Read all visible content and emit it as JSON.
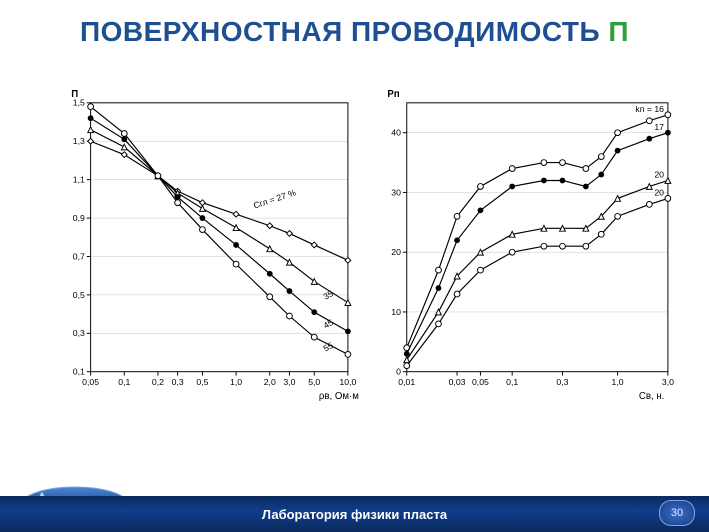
{
  "title": {
    "main": "ПОВЕРХНОСТНАЯ ПРОВОДИМОСТЬ ",
    "accent": "П"
  },
  "footer": {
    "label": "Лаборатория физики пласта",
    "page": "30"
  },
  "colors": {
    "title": "#1d4f91",
    "accent": "#2e9e3a",
    "footer_bg": "#103d8c",
    "axis": "#000000",
    "curve": "#000000",
    "bg": "#ffffff"
  },
  "chart_left": {
    "type": "line",
    "title": "",
    "ylabel": "П",
    "xlabel": "ρв, Ом·м",
    "x_ticks": [
      "0,05",
      "0,1",
      "0,2",
      "0,3",
      "0,5",
      "1,0",
      "2,0",
      "3,0",
      "5,0",
      "10,0"
    ],
    "y_ticks": [
      "0,1",
      "0,3",
      "0,5",
      "0,7",
      "0,9",
      "1,1",
      "1,3",
      "1,5"
    ],
    "series_param_label": "Cгл = 27 %",
    "series_labels": [
      "27",
      "35",
      "45",
      "55"
    ],
    "series": {
      "27": [
        {
          "x": 0.05,
          "y": 1.3
        },
        {
          "x": 0.1,
          "y": 1.23
        },
        {
          "x": 0.2,
          "y": 1.12
        },
        {
          "x": 0.3,
          "y": 1.04
        },
        {
          "x": 0.5,
          "y": 0.98
        },
        {
          "x": 1.0,
          "y": 0.92
        },
        {
          "x": 2.0,
          "y": 0.86
        },
        {
          "x": 3.0,
          "y": 0.82
        },
        {
          "x": 5.0,
          "y": 0.76
        },
        {
          "x": 10.0,
          "y": 0.68
        }
      ],
      "35": [
        {
          "x": 0.05,
          "y": 1.36
        },
        {
          "x": 0.1,
          "y": 1.27
        },
        {
          "x": 0.2,
          "y": 1.12
        },
        {
          "x": 0.3,
          "y": 1.03
        },
        {
          "x": 0.5,
          "y": 0.95
        },
        {
          "x": 1.0,
          "y": 0.85
        },
        {
          "x": 2.0,
          "y": 0.74
        },
        {
          "x": 3.0,
          "y": 0.67
        },
        {
          "x": 5.0,
          "y": 0.57
        },
        {
          "x": 10.0,
          "y": 0.46
        }
      ],
      "45": [
        {
          "x": 0.05,
          "y": 1.42
        },
        {
          "x": 0.1,
          "y": 1.31
        },
        {
          "x": 0.2,
          "y": 1.12
        },
        {
          "x": 0.3,
          "y": 1.01
        },
        {
          "x": 0.5,
          "y": 0.9
        },
        {
          "x": 1.0,
          "y": 0.76
        },
        {
          "x": 2.0,
          "y": 0.61
        },
        {
          "x": 3.0,
          "y": 0.52
        },
        {
          "x": 5.0,
          "y": 0.41
        },
        {
          "x": 10.0,
          "y": 0.31
        }
      ],
      "55": [
        {
          "x": 0.05,
          "y": 1.48
        },
        {
          "x": 0.1,
          "y": 1.34
        },
        {
          "x": 0.2,
          "y": 1.12
        },
        {
          "x": 0.3,
          "y": 0.98
        },
        {
          "x": 0.5,
          "y": 0.84
        },
        {
          "x": 1.0,
          "y": 0.66
        },
        {
          "x": 2.0,
          "y": 0.49
        },
        {
          "x": 3.0,
          "y": 0.39
        },
        {
          "x": 5.0,
          "y": 0.28
        },
        {
          "x": 10.0,
          "y": 0.19
        }
      ]
    },
    "markers": {
      "27": "diamond",
      "35": "triangle",
      "45": "filled-circle",
      "55": "open-circle"
    },
    "line_width": 1.2,
    "font_size": 9,
    "axis_color": "#000000",
    "curve_color": "#000000",
    "background_color": "#ffffff",
    "x_log": true,
    "y_log": false,
    "xlim": [
      0.05,
      10.0
    ],
    "ylim": [
      0.1,
      1.5
    ]
  },
  "chart_right": {
    "type": "line",
    "title": "",
    "ylabel": "Pп",
    "xlabel": "Cв, н.",
    "x_ticks": [
      "0,01",
      "0,03",
      "0,05",
      "0,1",
      "0,3",
      "1,0",
      "3,0"
    ],
    "y_ticks": [
      "0",
      "10",
      "20",
      "30",
      "40"
    ],
    "series_param_label": "kп = 16",
    "series_labels": [
      "16",
      "17",
      "20",
      "20"
    ],
    "series": {
      "16": [
        {
          "x": 0.01,
          "y": 4
        },
        {
          "x": 0.02,
          "y": 17
        },
        {
          "x": 0.03,
          "y": 26
        },
        {
          "x": 0.05,
          "y": 31
        },
        {
          "x": 0.1,
          "y": 34
        },
        {
          "x": 0.2,
          "y": 35
        },
        {
          "x": 0.3,
          "y": 35
        },
        {
          "x": 0.5,
          "y": 34
        },
        {
          "x": 0.7,
          "y": 36
        },
        {
          "x": 1.0,
          "y": 40
        },
        {
          "x": 2.0,
          "y": 42
        },
        {
          "x": 3.0,
          "y": 43
        }
      ],
      "17": [
        {
          "x": 0.01,
          "y": 3
        },
        {
          "x": 0.02,
          "y": 14
        },
        {
          "x": 0.03,
          "y": 22
        },
        {
          "x": 0.05,
          "y": 27
        },
        {
          "x": 0.1,
          "y": 31
        },
        {
          "x": 0.2,
          "y": 32
        },
        {
          "x": 0.3,
          "y": 32
        },
        {
          "x": 0.5,
          "y": 31
        },
        {
          "x": 0.7,
          "y": 33
        },
        {
          "x": 1.0,
          "y": 37
        },
        {
          "x": 2.0,
          "y": 39
        },
        {
          "x": 3.0,
          "y": 40
        }
      ],
      "20a": [
        {
          "x": 0.01,
          "y": 2
        },
        {
          "x": 0.02,
          "y": 10
        },
        {
          "x": 0.03,
          "y": 16
        },
        {
          "x": 0.05,
          "y": 20
        },
        {
          "x": 0.1,
          "y": 23
        },
        {
          "x": 0.2,
          "y": 24
        },
        {
          "x": 0.3,
          "y": 24
        },
        {
          "x": 0.5,
          "y": 24
        },
        {
          "x": 0.7,
          "y": 26
        },
        {
          "x": 1.0,
          "y": 29
        },
        {
          "x": 2.0,
          "y": 31
        },
        {
          "x": 3.0,
          "y": 32
        }
      ],
      "20b": [
        {
          "x": 0.01,
          "y": 1
        },
        {
          "x": 0.02,
          "y": 8
        },
        {
          "x": 0.03,
          "y": 13
        },
        {
          "x": 0.05,
          "y": 17
        },
        {
          "x": 0.1,
          "y": 20
        },
        {
          "x": 0.2,
          "y": 21
        },
        {
          "x": 0.3,
          "y": 21
        },
        {
          "x": 0.5,
          "y": 21
        },
        {
          "x": 0.7,
          "y": 23
        },
        {
          "x": 1.0,
          "y": 26
        },
        {
          "x": 2.0,
          "y": 28
        },
        {
          "x": 3.0,
          "y": 29
        }
      ]
    },
    "markers": {
      "16": "open-circle",
      "17": "filled-circle",
      "20a": "triangle",
      "20b": "open-circle"
    },
    "line_width": 1.2,
    "font_size": 9,
    "axis_color": "#000000",
    "curve_color": "#000000",
    "background_color": "#ffffff",
    "x_log": true,
    "y_log": false,
    "xlim": [
      0.01,
      3.0
    ],
    "ylim": [
      0,
      45
    ]
  }
}
